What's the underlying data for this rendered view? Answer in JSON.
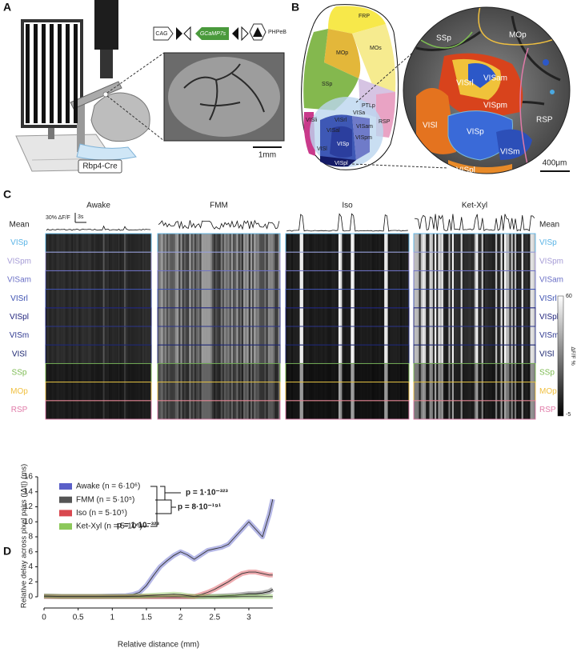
{
  "panel_a": {
    "label": "A",
    "mouse_line": "Rbp4-Cre",
    "construct": [
      "CAG",
      "GCaMP7s",
      "PHPeB"
    ],
    "scale_bar": "1mm"
  },
  "panel_b": {
    "label": "B",
    "atlas_regions": [
      "FRP",
      "MOs",
      "MOp",
      "SSp",
      "PTLp",
      "RSP",
      "VISa",
      "VISrl",
      "VISam",
      "VISpm",
      "VISal",
      "VISl",
      "VISp",
      "VISli",
      "VISpl"
    ],
    "image_regions": [
      "SSp",
      "MOp",
      "VISrl",
      "VISam",
      "VISpm",
      "VISl",
      "VISp",
      "RSP",
      "VISm",
      "VISpl"
    ],
    "scale_bar": "400μm"
  },
  "panel_c": {
    "label": "C",
    "conditions": [
      "Awake",
      "FMM",
      "Iso",
      "Ket-Xyl"
    ],
    "mean_label": "Mean",
    "rows": [
      {
        "name": "VISp",
        "color": "#5ab4e6"
      },
      {
        "name": "VISpm",
        "color": "#a59bd6"
      },
      {
        "name": "VISam",
        "color": "#6a6fc6"
      },
      {
        "name": "VISrl",
        "color": "#3b4fb0"
      },
      {
        "name": "VISpl",
        "color": "#1c1f7a"
      },
      {
        "name": "VISm",
        "color": "#2e3890"
      },
      {
        "name": "VISl",
        "color": "#1a2470"
      },
      {
        "name": "SSp",
        "color": "#7dbb52"
      },
      {
        "name": "MOp",
        "color": "#f0c040"
      },
      {
        "name": "RSP",
        "color": "#e07aa8"
      }
    ],
    "scale_amplitude": "30% ΔF/F",
    "scale_time": "3s",
    "colorbar": {
      "label": "ΔF/F %",
      "max": 60,
      "min": -5
    }
  },
  "chart_data": {
    "type": "line",
    "label": "D",
    "xlabel": "Relative distance (mm)",
    "ylabel": "Relative delay across pixel pairs (|Δt|) (ms)",
    "x": [
      0,
      0.25,
      0.5,
      0.75,
      1,
      1.2,
      1.3,
      1.4,
      1.5,
      1.6,
      1.7,
      1.8,
      1.9,
      2,
      2.1,
      2.2,
      2.3,
      2.4,
      2.5,
      2.6,
      2.7,
      2.8,
      2.9,
      3,
      3.1,
      3.2,
      3.3,
      3.35
    ],
    "series": [
      {
        "name": "Awake (n = 6·10⁶)",
        "color": "#5a5fc8",
        "values": [
          0.1,
          0.05,
          0.05,
          0.05,
          0.1,
          0.15,
          0.3,
          0.6,
          1.5,
          2.8,
          4,
          4.8,
          5.5,
          6,
          5.6,
          5,
          5.6,
          6.2,
          6.4,
          6.6,
          7,
          8,
          9,
          10,
          9,
          8,
          11,
          13
        ]
      },
      {
        "name": "FMM (n =  5·10⁵)",
        "color": "#555555",
        "values": [
          0.05,
          0.02,
          0.02,
          0.02,
          0.02,
          0.02,
          0.02,
          0.02,
          0.02,
          0.02,
          0.02,
          0.02,
          0.02,
          0.02,
          0.02,
          0.02,
          0.02,
          0.05,
          0.05,
          0.1,
          0.15,
          0.2,
          0.3,
          0.4,
          0.4,
          0.5,
          0.7,
          1
        ]
      },
      {
        "name": "Iso (n =  5·10⁵)",
        "color": "#d9484f",
        "values": [
          0.05,
          0.02,
          0.02,
          0.02,
          0.02,
          0.02,
          0.02,
          0.02,
          0.02,
          0.02,
          0.02,
          0.02,
          0.02,
          0.02,
          0.02,
          0.02,
          0.3,
          0.6,
          1,
          1.5,
          2,
          2.6,
          3.1,
          3.3,
          3.3,
          3.1,
          2.9,
          2.9
        ]
      },
      {
        "name": "Ket-Xyl (n =  5·10⁵)",
        "color": "#8cc85a",
        "values": [
          0.1,
          0.05,
          0.05,
          0.05,
          0.05,
          0.05,
          0.08,
          0.1,
          0.15,
          0.2,
          0.25,
          0.3,
          0.35,
          0.3,
          0.15,
          0.05,
          0.02,
          0.02,
          0.02,
          0.02,
          0.02,
          0.02,
          0.02,
          0.02,
          0.02,
          0.02,
          0.02,
          0.02
        ]
      }
    ],
    "annotations": [
      "p = 1·10⁻³²³",
      "p = 8·10⁻¹⁹¹",
      "p = 1·10⁻³²³"
    ],
    "xlim": [
      0,
      3.35
    ],
    "xticks": [
      0,
      0.5,
      1,
      1.5,
      2,
      2.5,
      3
    ],
    "ylim": [
      0,
      16
    ],
    "yticks": [
      0,
      2,
      4,
      6,
      8,
      10,
      12,
      14,
      16
    ],
    "grid": false
  }
}
